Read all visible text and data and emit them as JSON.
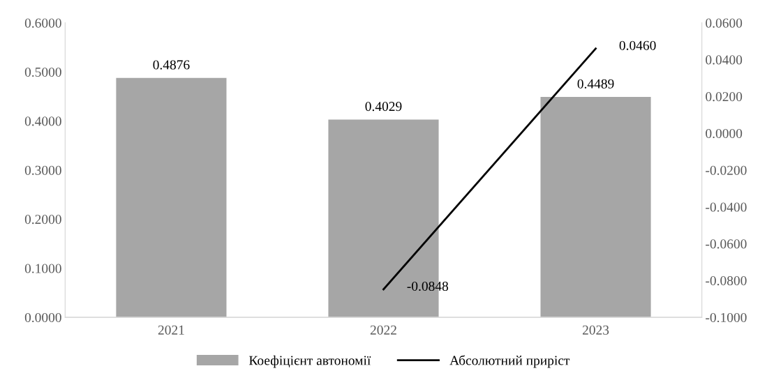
{
  "chart_data": {
    "type": "bar",
    "categories": [
      "2021",
      "2022",
      "2023"
    ],
    "series": [
      {
        "name": "Коефіцієнт автономії",
        "color": "#a6a6a6",
        "values": [
          0.4876,
          0.4029,
          0.4489
        ],
        "value_labels": [
          "0.4876",
          "0.4029",
          "0.4489"
        ]
      },
      {
        "name": "Абсолютний приріст",
        "type": "line",
        "axis": "y2",
        "color": "#000000",
        "values": [
          null,
          -0.0848,
          0.046
        ],
        "value_labels": [
          null,
          "-0.0848",
          "0.0460"
        ]
      }
    ],
    "ylim": [
      0,
      0.6
    ],
    "yticks": [
      {
        "value": 0,
        "label": "0.0000"
      },
      {
        "value": 0.1,
        "label": "0.1000"
      },
      {
        "value": 0.2,
        "label": "0.2000"
      },
      {
        "value": 0.3,
        "label": "0.3000"
      },
      {
        "value": 0.4,
        "label": "0.4000"
      },
      {
        "value": 0.5,
        "label": "0.5000"
      },
      {
        "value": 0.6,
        "label": "0.6000"
      }
    ],
    "y2lim": [
      -0.1,
      0.06
    ],
    "y2ticks": [
      {
        "value": -0.1,
        "label": "-0.1000"
      },
      {
        "value": -0.08,
        "label": "-0.0800"
      },
      {
        "value": -0.06,
        "label": "-0.0600"
      },
      {
        "value": -0.04,
        "label": "-0.0400"
      },
      {
        "value": -0.02,
        "label": "-0.0200"
      },
      {
        "value": 0,
        "label": "0.0000"
      },
      {
        "value": 0.02,
        "label": "0.0200"
      },
      {
        "value": 0.04,
        "label": "0.0400"
      },
      {
        "value": 0.06,
        "label": "0.0600"
      }
    ],
    "legend": "bottom",
    "marker": "none",
    "line_style": "solid"
  }
}
